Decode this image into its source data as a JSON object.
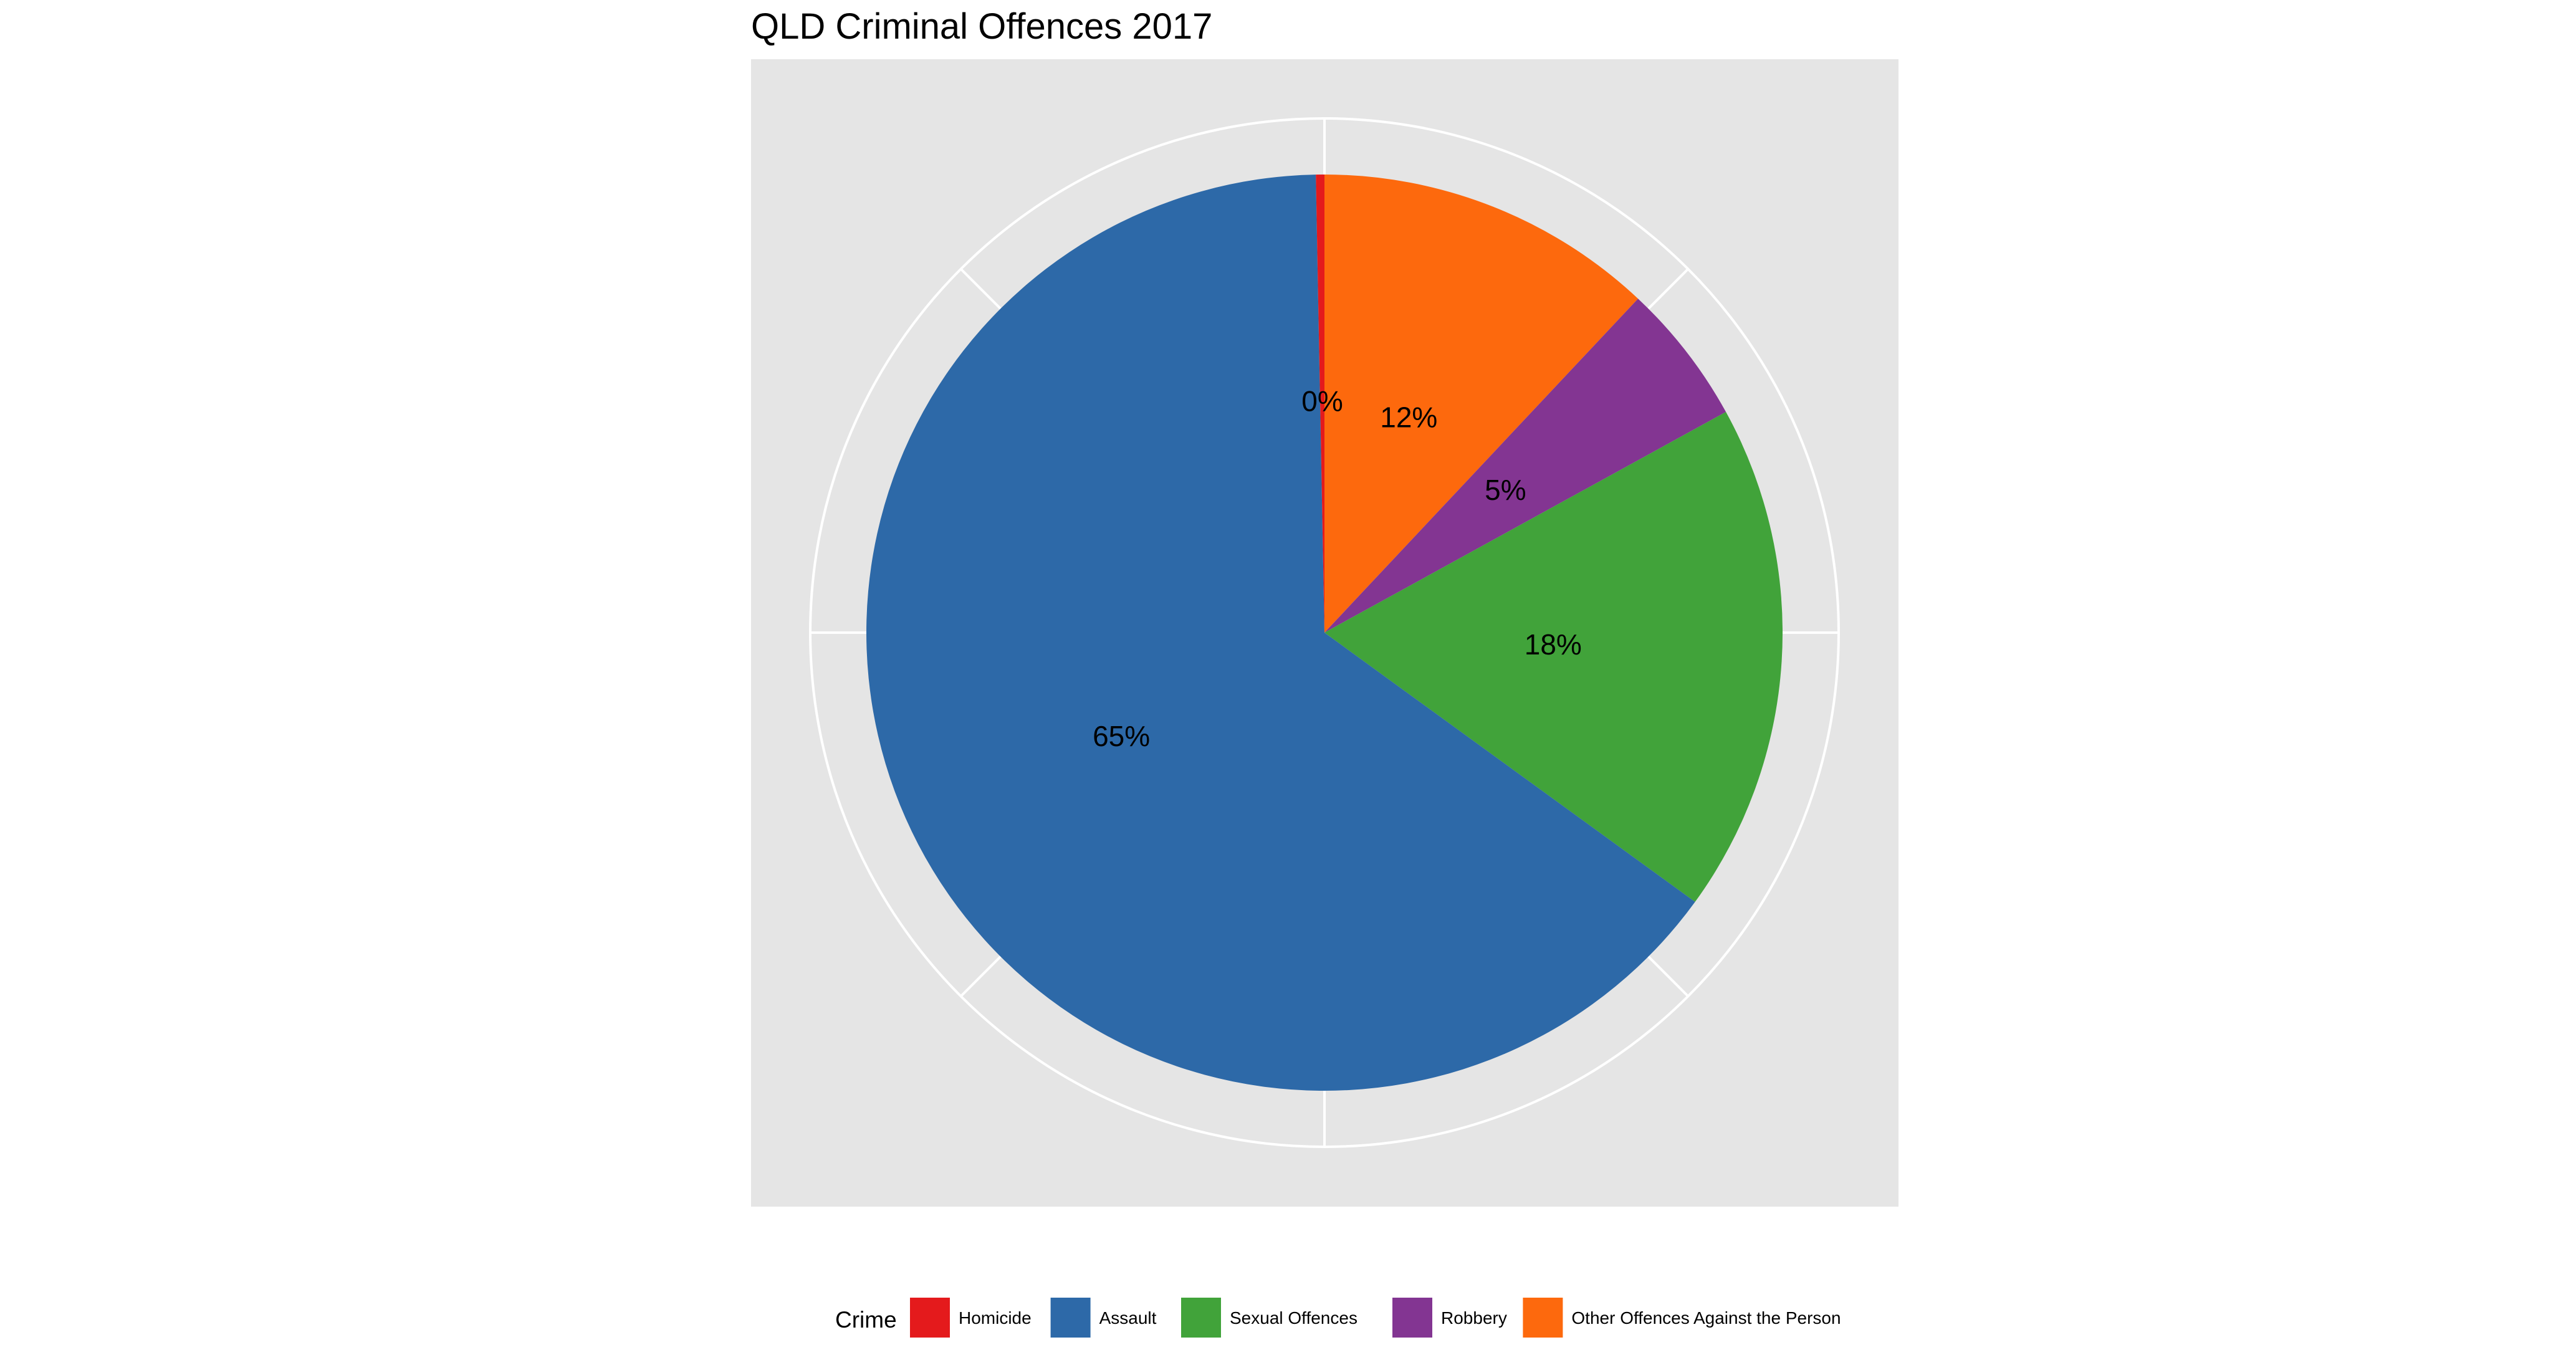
{
  "chart_data": {
    "type": "pie",
    "title": "QLD Criminal Offences 2017",
    "legend_title": "Crime",
    "legend_position": "bottom",
    "slices": [
      {
        "name": "Homicide",
        "value": 0.3,
        "label": "0%",
        "color": "#e41a1c"
      },
      {
        "name": "Assault",
        "value": 64.7,
        "label": "65%",
        "color": "#2d69a8"
      },
      {
        "name": "Sexual Offences",
        "value": 18.0,
        "label": "18%",
        "color": "#41a33a"
      },
      {
        "name": "Robbery",
        "value": 5.0,
        "label": "5%",
        "color": "#833592"
      },
      {
        "name": "Other Offences Against the Person",
        "value": 12.0,
        "label": "12%",
        "color": "#fd690d"
      }
    ],
    "panel_color": "#e5e5e5",
    "grid": true,
    "grid_color": "#ffffff"
  }
}
